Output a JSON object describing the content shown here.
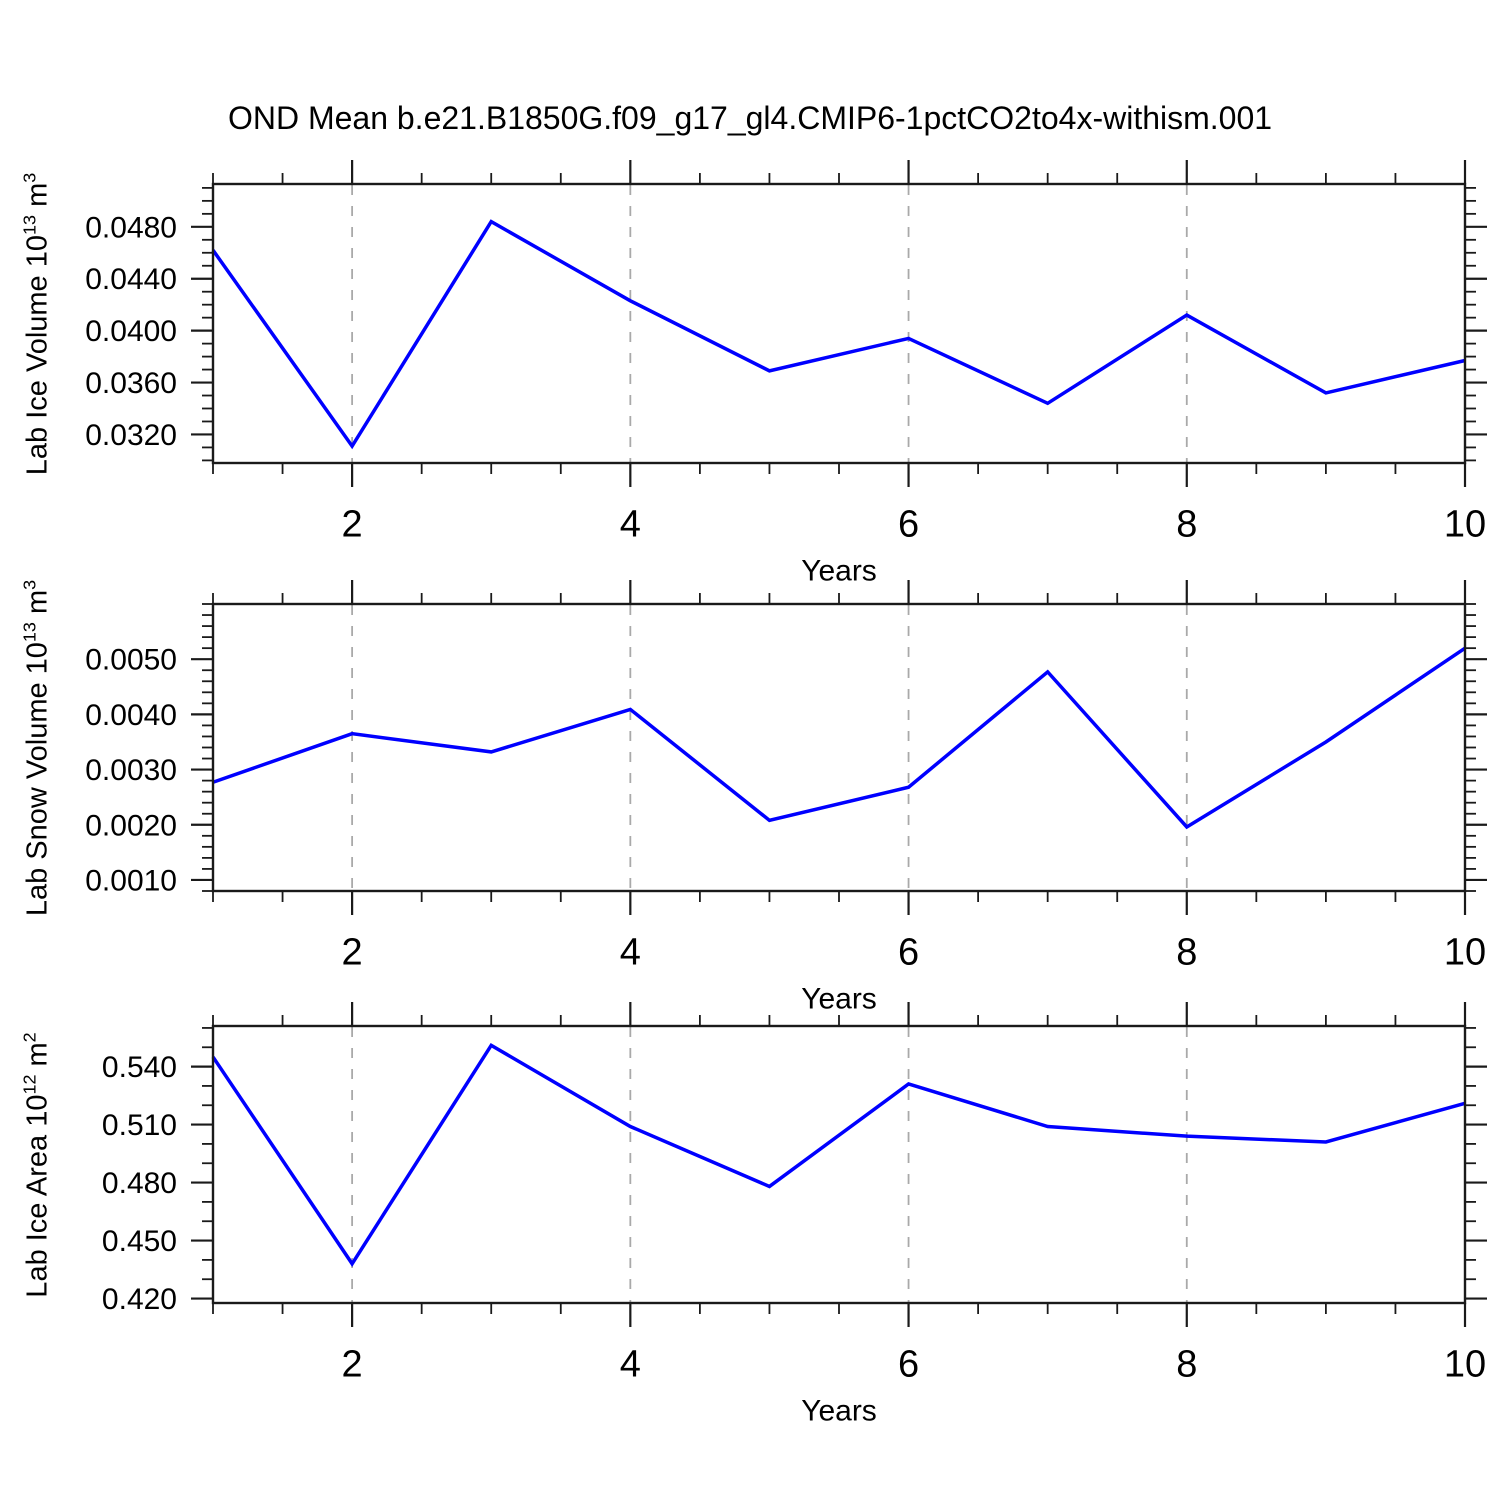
{
  "title": "OND Mean b.e21.B1850G.f09_g17_gl4.CMIP6-1pctCO2to4x-withism.001",
  "colors": {
    "line": "#0000ff",
    "grid": "#a9a9a9",
    "axis": "#1a1a1a",
    "text": "#000000",
    "background": "#ffffff"
  },
  "x_axis": {
    "label": "Years",
    "range": [
      1,
      10
    ],
    "ticks": [
      2,
      4,
      6,
      8,
      10
    ],
    "minor_step": 0.5,
    "gridline_years": [
      2,
      4,
      6,
      8
    ]
  },
  "chart_data": [
    {
      "type": "line",
      "name": "Lab Ice Volume",
      "xlabel": "Years",
      "ylabel": {
        "text": "Lab Ice Volume 10",
        "exp": "13",
        "unit": " m",
        "unit_exp": "3"
      },
      "x": [
        1,
        2,
        3,
        4,
        5,
        6,
        7,
        8,
        9,
        10
      ],
      "values": [
        0.0462,
        0.0311,
        0.0484,
        0.0423,
        0.0369,
        0.0394,
        0.0344,
        0.0412,
        0.0352,
        0.0377
      ],
      "ylim": [
        0.0298,
        0.0513
      ],
      "yticks": [
        0.048,
        0.044,
        0.04,
        0.036,
        0.032
      ],
      "ytick_labels": [
        "0.0480",
        "0.0440",
        "0.0400",
        "0.0360",
        "0.0320"
      ],
      "y_minor_step": 0.001,
      "grid": true
    },
    {
      "type": "line",
      "name": "Lab Snow Volume",
      "xlabel": "Years",
      "ylabel": {
        "text": "Lab Snow Volume 10",
        "exp": "13",
        "unit": " m",
        "unit_exp": "3"
      },
      "x": [
        1,
        2,
        3,
        4,
        5,
        6,
        7,
        8,
        9,
        10
      ],
      "values": [
        0.00277,
        0.00365,
        0.00332,
        0.00409,
        0.00208,
        0.00268,
        0.00477,
        0.00196,
        0.0035,
        0.0052
      ],
      "ylim": [
        0.0008,
        0.006
      ],
      "yticks": [
        0.005,
        0.004,
        0.003,
        0.002,
        0.001
      ],
      "ytick_labels": [
        "0.0050",
        "0.0040",
        "0.0030",
        "0.0020",
        "0.0010"
      ],
      "y_minor_step": 0.0002,
      "grid": true
    },
    {
      "type": "line",
      "name": "Lab Ice Area",
      "xlabel": "Years",
      "ylabel": {
        "text": "Lab Ice Area 10",
        "exp": "12",
        "unit": " m",
        "unit_exp": "2"
      },
      "x": [
        1,
        2,
        3,
        4,
        5,
        6,
        7,
        8,
        9,
        10
      ],
      "values": [
        0.545,
        0.438,
        0.551,
        0.509,
        0.478,
        0.531,
        0.509,
        0.504,
        0.501,
        0.521
      ],
      "ylim": [
        0.4177,
        0.561
      ],
      "yticks": [
        0.54,
        0.51,
        0.48,
        0.45,
        0.42
      ],
      "ytick_labels": [
        "0.540",
        "0.510",
        "0.480",
        "0.450",
        "0.420"
      ],
      "y_minor_step": 0.01,
      "grid": true
    }
  ]
}
